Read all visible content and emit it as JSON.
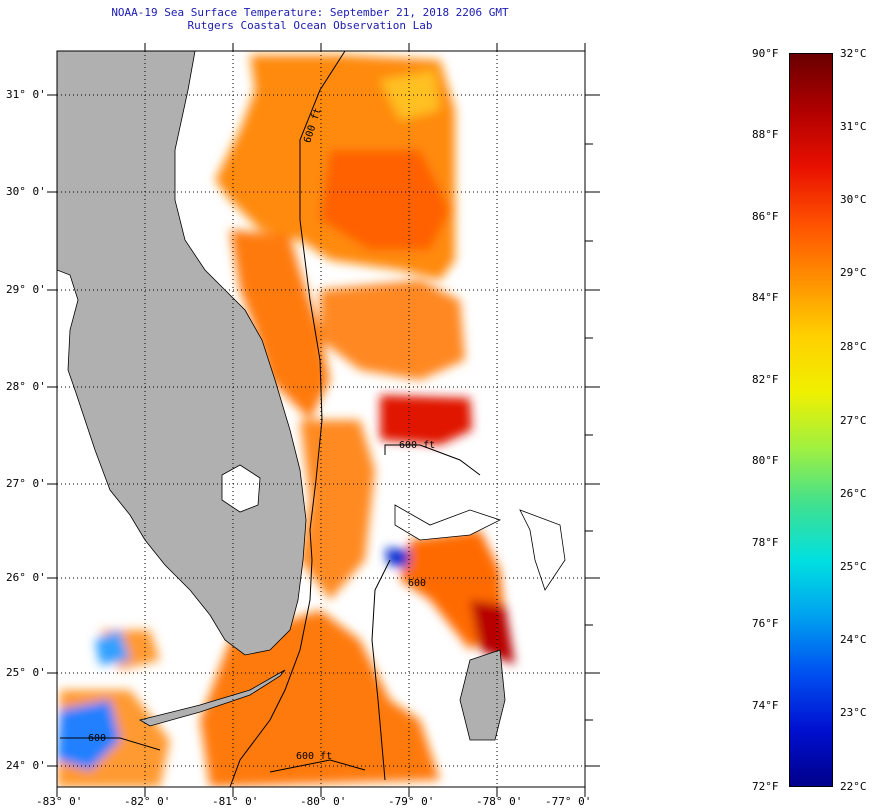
{
  "header": {
    "title_line1": "NOAA-19 Sea Surface Temperature:  September 21, 2018 2206 GMT",
    "title_line2": "Rutgers Coastal Ocean Observation Lab"
  },
  "map": {
    "lat_labels": [
      "31° 0'",
      "30° 0'",
      "29° 0'",
      "28° 0'",
      "27° 0'",
      "26° 0'",
      "25° 0'",
      "24° 0'"
    ],
    "lon_labels": [
      "-83° 0'",
      "-82° 0'",
      "-81° 0'",
      "-80° 0'",
      "-79° 0'",
      "-78° 0'",
      "-77° 0'"
    ],
    "contour_labels": [
      "600 ft",
      "600 ft",
      "600 ft",
      "600",
      "600"
    ],
    "colors": {
      "land": "#b0b0b0",
      "frame": "#000000"
    }
  },
  "colorbar": {
    "fahrenheit_labels": [
      "90°F",
      "88°F",
      "86°F",
      "84°F",
      "82°F",
      "80°F",
      "78°F",
      "76°F",
      "74°F",
      "72°F"
    ],
    "celsius_labels": [
      "32°C",
      "31°C",
      "30°C",
      "29°C",
      "28°C",
      "27°C",
      "26°C",
      "25°C",
      "24°C",
      "23°C",
      "22°C"
    ],
    "gradient": [
      "#6a0000",
      "#b00000",
      "#e81000",
      "#ff5000",
      "#ff9000",
      "#ffd000",
      "#f0f000",
      "#a0f040",
      "#40e090",
      "#00e0e0",
      "#00a0f0",
      "#0050f0",
      "#0010d0",
      "#00008a"
    ]
  }
}
